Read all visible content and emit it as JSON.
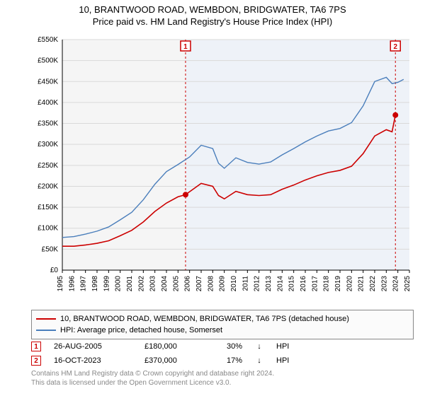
{
  "title": "10, BRANTWOOD ROAD, WEMBDON, BRIDGWATER, TA6 7PS",
  "subtitle": "Price paid vs. HM Land Registry's House Price Index (HPI)",
  "chart": {
    "type": "line",
    "background_color": "#ffffff",
    "plot_bg_left": "#f5f5f5",
    "plot_bg_right": "#eef2f8",
    "split_year": 2005.65,
    "grid_color": "#d9d9d9",
    "axis_color": "#000000",
    "tick_fontsize": 10,
    "title_fontsize": 13,
    "xlim": [
      1995,
      2025
    ],
    "ylim": [
      0,
      550000
    ],
    "ytick_step": 50000,
    "xtick_step": 1,
    "ytick_labels": [
      "£0",
      "£50K",
      "£100K",
      "£150K",
      "£200K",
      "£250K",
      "£300K",
      "£350K",
      "£400K",
      "£450K",
      "£500K",
      "£550K"
    ],
    "xtick_years": [
      1995,
      1996,
      1997,
      1998,
      1999,
      2000,
      2001,
      2002,
      2003,
      2004,
      2005,
      2006,
      2007,
      2008,
      2009,
      2010,
      2011,
      2012,
      2013,
      2014,
      2015,
      2016,
      2017,
      2018,
      2019,
      2020,
      2021,
      2022,
      2023,
      2024,
      2025
    ],
    "series": [
      {
        "name": "property",
        "color": "#cc0000",
        "line_width": 1.6,
        "points": [
          [
            1995,
            57000
          ],
          [
            1996,
            57000
          ],
          [
            1997,
            60000
          ],
          [
            1998,
            64000
          ],
          [
            1999,
            70000
          ],
          [
            2000,
            82000
          ],
          [
            2001,
            95000
          ],
          [
            2002,
            115000
          ],
          [
            2003,
            140000
          ],
          [
            2004,
            160000
          ],
          [
            2005,
            175000
          ],
          [
            2005.65,
            180000
          ],
          [
            2006,
            187000
          ],
          [
            2007,
            207000
          ],
          [
            2008,
            200000
          ],
          [
            2008.5,
            178000
          ],
          [
            2009,
            170000
          ],
          [
            2010,
            188000
          ],
          [
            2011,
            180000
          ],
          [
            2012,
            178000
          ],
          [
            2013,
            180000
          ],
          [
            2014,
            193000
          ],
          [
            2015,
            203000
          ],
          [
            2016,
            215000
          ],
          [
            2017,
            225000
          ],
          [
            2018,
            233000
          ],
          [
            2019,
            238000
          ],
          [
            2020,
            248000
          ],
          [
            2021,
            278000
          ],
          [
            2022,
            320000
          ],
          [
            2023,
            335000
          ],
          [
            2023.5,
            330000
          ],
          [
            2023.79,
            370000
          ]
        ],
        "marker_points": [
          [
            2005.65,
            180000
          ],
          [
            2023.79,
            370000
          ]
        ],
        "marker_style": "circle",
        "marker_size": 4,
        "marker_fill": "#cc0000"
      },
      {
        "name": "hpi",
        "color": "#4a7ebb",
        "line_width": 1.4,
        "points": [
          [
            1995,
            78000
          ],
          [
            1996,
            80000
          ],
          [
            1997,
            86000
          ],
          [
            1998,
            93000
          ],
          [
            1999,
            103000
          ],
          [
            2000,
            120000
          ],
          [
            2001,
            138000
          ],
          [
            2002,
            168000
          ],
          [
            2003,
            205000
          ],
          [
            2004,
            235000
          ],
          [
            2005,
            252000
          ],
          [
            2006,
            270000
          ],
          [
            2007,
            298000
          ],
          [
            2008,
            290000
          ],
          [
            2008.5,
            255000
          ],
          [
            2009,
            243000
          ],
          [
            2010,
            268000
          ],
          [
            2011,
            257000
          ],
          [
            2012,
            253000
          ],
          [
            2013,
            258000
          ],
          [
            2014,
            275000
          ],
          [
            2015,
            290000
          ],
          [
            2016,
            306000
          ],
          [
            2017,
            320000
          ],
          [
            2018,
            332000
          ],
          [
            2019,
            338000
          ],
          [
            2020,
            352000
          ],
          [
            2021,
            392000
          ],
          [
            2022,
            450000
          ],
          [
            2023,
            460000
          ],
          [
            2023.5,
            445000
          ],
          [
            2024,
            448000
          ],
          [
            2024.5,
            455000
          ]
        ]
      }
    ],
    "annotations": [
      {
        "n": "1",
        "x": 2005.65,
        "color": "#cc0000",
        "dash": "3,3",
        "box_y_top": true
      },
      {
        "n": "2",
        "x": 2023.79,
        "color": "#cc0000",
        "dash": "3,3",
        "box_y_top": true
      }
    ]
  },
  "legend": {
    "items": [
      {
        "color": "#cc0000",
        "label": "10, BRANTWOOD ROAD, WEMBDON, BRIDGWATER, TA6 7PS (detached house)"
      },
      {
        "color": "#4a7ebb",
        "label": "HPI: Average price, detached house, Somerset"
      }
    ]
  },
  "annotation_rows": [
    {
      "n": "1",
      "color": "#cc0000",
      "date": "26-AUG-2005",
      "price": "£180,000",
      "pct": "30%",
      "arrow": "↓",
      "label": "HPI"
    },
    {
      "n": "2",
      "color": "#cc0000",
      "date": "16-OCT-2023",
      "price": "£370,000",
      "pct": "17%",
      "arrow": "↓",
      "label": "HPI"
    }
  ],
  "footer": {
    "line1": "Contains HM Land Registry data © Crown copyright and database right 2024.",
    "line2": "This data is licensed under the Open Government Licence v3.0."
  }
}
